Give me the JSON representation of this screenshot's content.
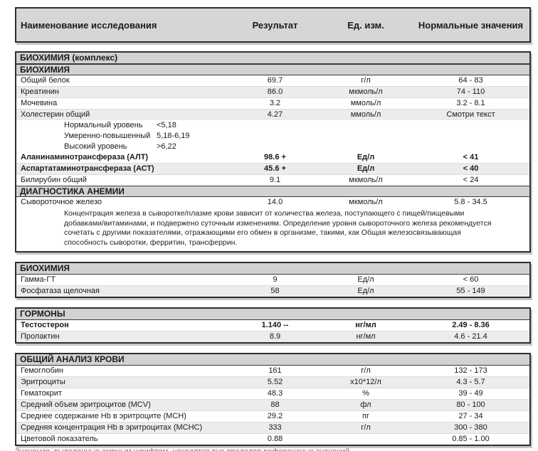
{
  "colors": {
    "header_bg": "#d6d6d6",
    "section_bg": "#d2d2d2",
    "stripe_bg": "#ececec",
    "border": "#2e2e2e"
  },
  "columns": {
    "name": "Наименование исследования",
    "result": "Результат",
    "units": "Ед. изм.",
    "normal": "Нормальные значения"
  },
  "blocks": [
    {
      "sections": [
        {
          "title": "БИОХИМИЯ (комплекс)",
          "rows": []
        },
        {
          "title": "БИОХИМИЯ",
          "rows": [
            {
              "name": "Общий белок",
              "result": "69.7",
              "units": "г/л",
              "normal": "64 - 83"
            },
            {
              "name": "Креатинин",
              "result": "86.0",
              "units": "мкмоль/л",
              "normal": "74 - 110"
            },
            {
              "name": "Мочевина",
              "result": "3.2",
              "units": "ммоль/л",
              "normal": "3.2 - 8.1"
            },
            {
              "name": "Холестерин общий",
              "result": "4.27",
              "units": "ммоль/л",
              "normal": "Смотри текст"
            },
            {
              "type": "sub",
              "label": "Нормальный уровень",
              "value": "<5,18"
            },
            {
              "type": "sub",
              "label": "Умеренно-повышенный",
              "value": "5,18-6,19"
            },
            {
              "type": "sub",
              "label": "Высокий уровень",
              "value": ">6,22"
            },
            {
              "name": "Аланинаминотрансфераза (АЛТ)",
              "result": "98.6 +",
              "units": "Ед/л",
              "normal": "< 41",
              "bold": true
            },
            {
              "name": "Аспартатаминотрансфераза (АСТ)",
              "result": "45.6 +",
              "units": "Ед/л",
              "normal": "< 40",
              "bold": true
            },
            {
              "name": "Билирубин общий",
              "result": "9.1",
              "units": "мкмоль/л",
              "normal": "< 24"
            }
          ]
        },
        {
          "title": "ДИАГНОСТИКА АНЕМИИ",
          "rows": [
            {
              "name": "Сывороточное железо",
              "result": "14.0",
              "units": "мкмоль/л",
              "normal": "5.8 - 34.5"
            },
            {
              "type": "note",
              "lines": [
                "Концентрация железа в сыворотке/плазме крови зависит от количества железа, поступающего с пищей/пищевыми",
                "добавками/витаминами, и подвержено суточным изменениям. Определение уровня сывороточного железа рекомендуется",
                "сочетать с другими показателями, отражающими его обмен в организме, такими, как Общая железосвязывающая",
                "способность сыворотки, ферритин, трансферрин."
              ]
            }
          ]
        }
      ]
    },
    {
      "sections": [
        {
          "title": "БИОХИМИЯ",
          "rows": [
            {
              "name": "Гамма-ГТ",
              "result": "9",
              "units": "Ед/л",
              "normal": "< 60"
            },
            {
              "name": "Фосфатаза щелочная",
              "result": "58",
              "units": "Ед/л",
              "normal": "55 - 149"
            }
          ]
        }
      ]
    },
    {
      "sections": [
        {
          "title": "ГОРМОНЫ",
          "rows": [
            {
              "name": "Тестостерон",
              "result": "1.140 --",
              "units": "нг/мл",
              "normal": "2.49 - 8.36",
              "bold": true
            },
            {
              "name": "Пролактин",
              "result": "8.9",
              "units": "нг/мл",
              "normal": "4.6 - 21.4"
            }
          ]
        }
      ]
    },
    {
      "sections": [
        {
          "title": "ОБЩИЙ АНАЛИЗ КРОВИ",
          "rows": [
            {
              "name": "Гемоглобин",
              "result": "161",
              "units": "г/л",
              "normal": "132 - 173"
            },
            {
              "name": "Эритроциты",
              "result": "5.52",
              "units": "x10*12/л",
              "normal": "4.3 - 5.7"
            },
            {
              "name": "Гематокрит",
              "result": "48.3",
              "units": "%",
              "normal": "39 - 49"
            },
            {
              "name": "Средний объем эритроцитов (MCV)",
              "result": "88",
              "units": "фл",
              "normal": "80 - 100"
            },
            {
              "name": "Среднее содержание Hb в эритроците (MCH)",
              "result": "29.2",
              "units": "пг",
              "normal": "27 - 34"
            },
            {
              "name": "Средняя концентрация Hb в эритроцитах (MCHC)",
              "result": "333",
              "units": "г/л",
              "normal": "300 - 380"
            },
            {
              "name": "Цветовой показатель",
              "result": "0.88",
              "units": "",
              "normal": "0.85 - 1.00"
            }
          ]
        }
      ]
    }
  ],
  "footnote_clipped": "Значения, выделенные жирным шрифтом, находятся вне пределов референсных значений"
}
